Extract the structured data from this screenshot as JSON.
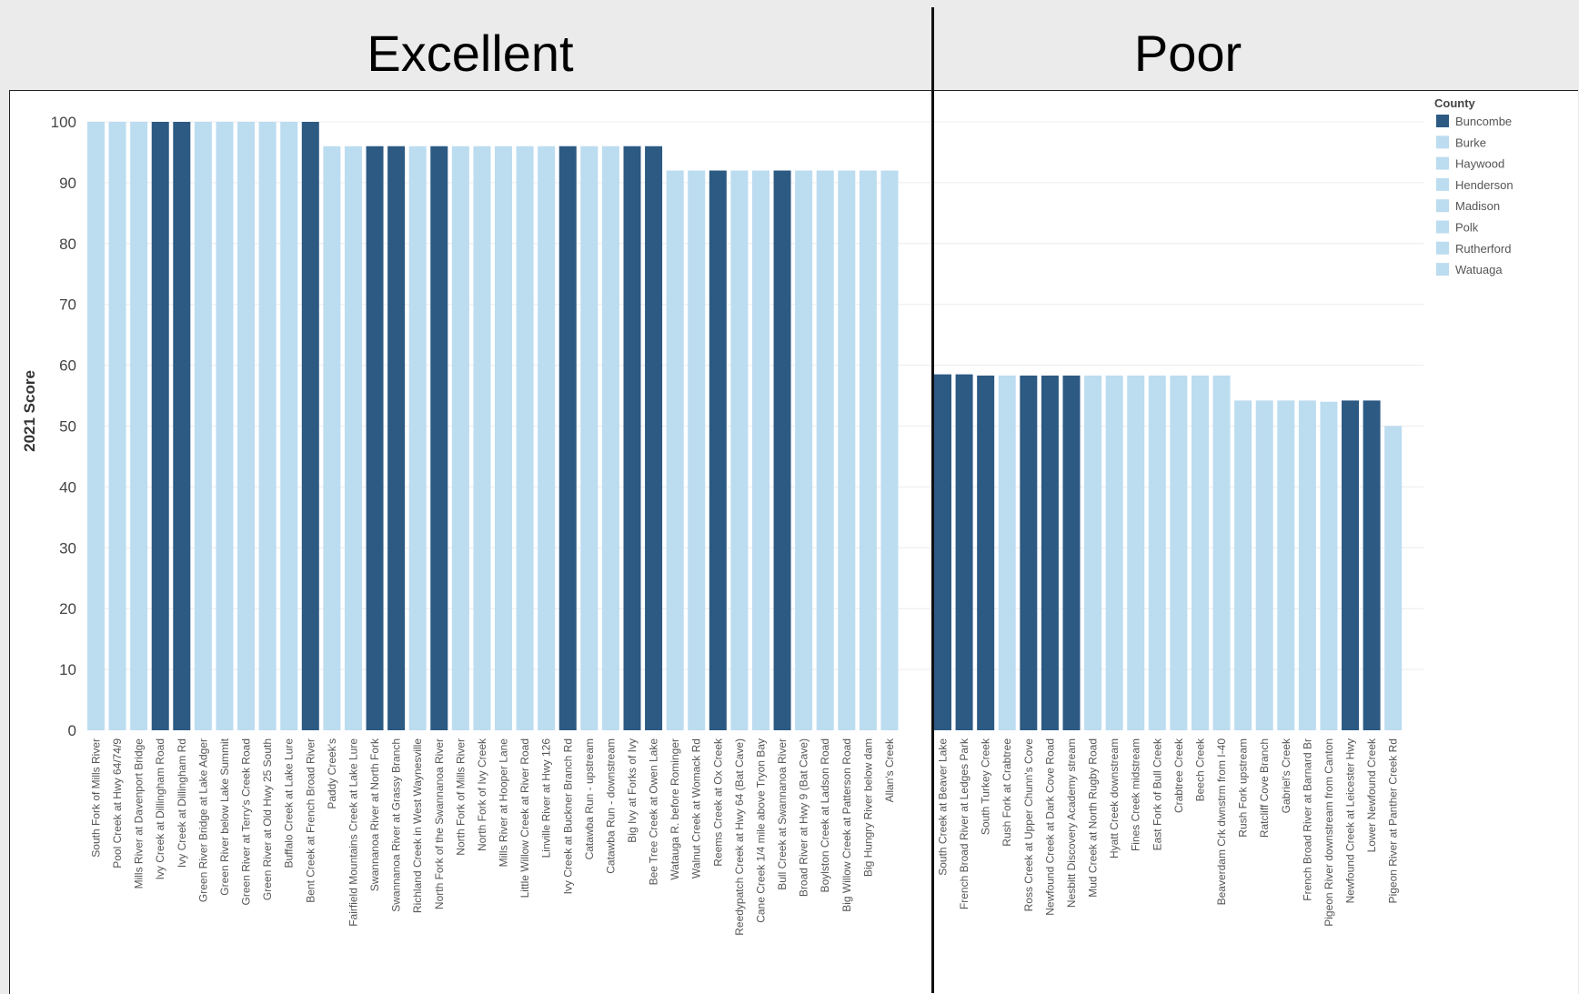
{
  "headers": {
    "left": "Excellent",
    "right": "Poor"
  },
  "colors": {
    "Buncombe": "#2c5a83",
    "other": "#bcdcf0",
    "grid": "#ececec"
  },
  "chart_data": {
    "type": "bar",
    "ylabel": "2021 Score",
    "ylim": [
      0,
      100
    ],
    "yticks": [
      0,
      10,
      20,
      30,
      40,
      50,
      60,
      70,
      80,
      90,
      100
    ],
    "legend": {
      "title": "County",
      "placement": "top-right",
      "entries": [
        "Buncombe",
        "Burke",
        "Haywood",
        "Henderson",
        "Madison",
        "Polk",
        "Rutherford",
        "Watuaga"
      ]
    },
    "panels": [
      {
        "name": "Excellent",
        "bars": [
          {
            "label": "South Fork of Mills River",
            "value": 100,
            "county": "other"
          },
          {
            "label": "Pool Creek at Hwy 64/74/9",
            "value": 100,
            "county": "other"
          },
          {
            "label": "Mills River at Davenport Bridge",
            "value": 100,
            "county": "other"
          },
          {
            "label": "Ivy Creek at Dillingham Road",
            "value": 100,
            "county": "Buncombe"
          },
          {
            "label": "Ivy Creek at Dillingham Rd",
            "value": 100,
            "county": "Buncombe"
          },
          {
            "label": "Green River Bridge at Lake Adger",
            "value": 100,
            "county": "other"
          },
          {
            "label": "Green River below Lake Summit",
            "value": 100,
            "county": "other"
          },
          {
            "label": "Green River at Terry's Creek Road",
            "value": 100,
            "county": "other"
          },
          {
            "label": "Green River at Old Hwy 25 South",
            "value": 100,
            "county": "other"
          },
          {
            "label": "Buffalo Creek at Lake Lure",
            "value": 100,
            "county": "other"
          },
          {
            "label": "Bent Creek at French Broad River",
            "value": 100,
            "county": "Buncombe"
          },
          {
            "label": "Paddy Creek's",
            "value": 96,
            "county": "other"
          },
          {
            "label": "Fairfield Mountains Creek at Lake Lure",
            "value": 96,
            "county": "other"
          },
          {
            "label": "Swannanoa River at North Fork",
            "value": 96,
            "county": "Buncombe"
          },
          {
            "label": "Swannanoa River at Grassy Branch",
            "value": 96,
            "county": "Buncombe"
          },
          {
            "label": "Richland Creek in West Waynesville",
            "value": 96,
            "county": "other"
          },
          {
            "label": "North Fork of the Swannanoa River",
            "value": 96,
            "county": "Buncombe"
          },
          {
            "label": "North Fork of Mills River",
            "value": 96,
            "county": "other"
          },
          {
            "label": "North Fork of Ivy Creek",
            "value": 96,
            "county": "other"
          },
          {
            "label": "Mills River at Hooper Lane",
            "value": 96,
            "county": "other"
          },
          {
            "label": "Little Willow Creek at River Road",
            "value": 96,
            "county": "other"
          },
          {
            "label": "Linville River at Hwy 126",
            "value": 96,
            "county": "other"
          },
          {
            "label": "Ivy Creek at Buckner Branch Rd",
            "value": 96,
            "county": "Buncombe"
          },
          {
            "label": "Catawba Run - upstream",
            "value": 96,
            "county": "other"
          },
          {
            "label": "Catawba Run - downstream",
            "value": 96,
            "county": "other"
          },
          {
            "label": "Big Ivy at Forks of Ivy",
            "value": 96,
            "county": "Buncombe"
          },
          {
            "label": "Bee Tree Creek at Owen Lake",
            "value": 96,
            "county": "Buncombe"
          },
          {
            "label": "Watauga R. before Rominger",
            "value": 92,
            "county": "other"
          },
          {
            "label": "Walnut Creek at Womack Rd",
            "value": 92,
            "county": "other"
          },
          {
            "label": "Reems Creek at Ox Creek",
            "value": 92,
            "county": "Buncombe"
          },
          {
            "label": "Reedypatch Creek at Hwy 64 (Bat Cave)",
            "value": 92,
            "county": "other"
          },
          {
            "label": "Cane Creek 1/4 mile above Tryon Bay",
            "value": 92,
            "county": "other"
          },
          {
            "label": "Bull Creek at Swannanoa River",
            "value": 92,
            "county": "Buncombe"
          },
          {
            "label": "Broad River at Hwy 9 (Bat Cave)",
            "value": 92,
            "county": "other"
          },
          {
            "label": "Boylston Creek at Ladson Road",
            "value": 92,
            "county": "other"
          },
          {
            "label": "Big Willow Creek at Patterson Road",
            "value": 92,
            "county": "other"
          },
          {
            "label": "Big Hungry River below dam",
            "value": 92,
            "county": "other"
          },
          {
            "label": "Allan's Creek",
            "value": 92,
            "county": "other"
          }
        ]
      },
      {
        "name": "Poor",
        "bars": [
          {
            "label": "South Creek at Beaver Lake",
            "value": 58.5,
            "county": "Buncombe"
          },
          {
            "label": "French Broad River at Ledges Park",
            "value": 58.5,
            "county": "Buncombe"
          },
          {
            "label": "South Turkey Creek",
            "value": 58.3,
            "county": "Buncombe"
          },
          {
            "label": "Rush Fork at Crabtree",
            "value": 58.3,
            "county": "other"
          },
          {
            "label": "Ross Creek at Upper Chunn's Cove",
            "value": 58.3,
            "county": "Buncombe"
          },
          {
            "label": "Newfound Creek at Dark Cove Road",
            "value": 58.3,
            "county": "Buncombe"
          },
          {
            "label": "Nesbitt Discovery Academy stream",
            "value": 58.3,
            "county": "Buncombe"
          },
          {
            "label": "Mud Creek at North Rugby Road",
            "value": 58.3,
            "county": "other"
          },
          {
            "label": "Hyatt Creek downstream",
            "value": 58.3,
            "county": "other"
          },
          {
            "label": "Fines Creek midstream",
            "value": 58.3,
            "county": "other"
          },
          {
            "label": "East Fork of Bull Creek",
            "value": 58.3,
            "county": "other"
          },
          {
            "label": "Crabtree Creek",
            "value": 58.3,
            "county": "other"
          },
          {
            "label": "Beech Creek",
            "value": 58.3,
            "county": "other"
          },
          {
            "label": "Beaverdam Crk dwnstrm from I-40",
            "value": 58.3,
            "county": "other"
          },
          {
            "label": "Rush Fork upstream",
            "value": 54.2,
            "county": "other"
          },
          {
            "label": "Ratcliff Cove Branch",
            "value": 54.2,
            "county": "other"
          },
          {
            "label": "Gabriel's Creek",
            "value": 54.2,
            "county": "other"
          },
          {
            "label": "French Broad River at Barnard Br",
            "value": 54.2,
            "county": "other"
          },
          {
            "label": "Pigeon River downstream from Canton",
            "value": 54,
            "county": "other"
          },
          {
            "label": "Newfound Creek at Leicester Hwy",
            "value": 54.2,
            "county": "Buncombe"
          },
          {
            "label": "Lower Newfound Creek",
            "value": 54.2,
            "county": "Buncombe"
          },
          {
            "label": "Pigeon River at Panther Creek Rd",
            "value": 50,
            "county": "other"
          }
        ]
      }
    ]
  }
}
